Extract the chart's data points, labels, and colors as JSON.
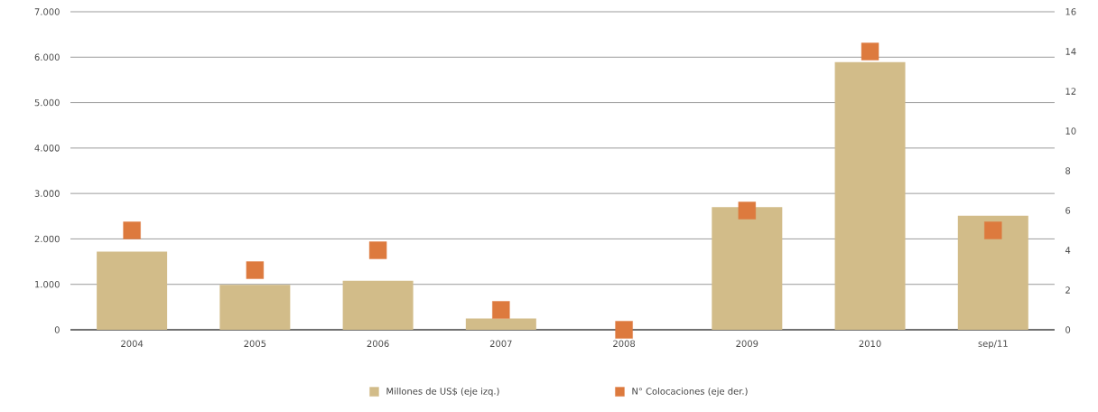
{
  "chart_data": {
    "type": "bar",
    "categories": [
      "2004",
      "2005",
      "2006",
      "2007",
      "2008",
      "2009",
      "2010",
      "sep/11"
    ],
    "series": [
      {
        "name": "Millones de US$ (eje izq.)",
        "color": "#d2bc89",
        "values": [
          1720,
          990,
          1080,
          250,
          0,
          2700,
          5890,
          2510
        ]
      },
      {
        "name": "N° Colocaciones (eje der.)",
        "type": "scatter",
        "axis": "y2",
        "marker": "square",
        "color": "#dd7a3e",
        "values": [
          5,
          3,
          4,
          1,
          0,
          6,
          14,
          5
        ]
      }
    ],
    "ylim": [
      0,
      7000
    ],
    "yticks": [
      0,
      {
        "value": 1000,
        "label": "1.000"
      },
      {
        "value": 2000,
        "label": "2.000"
      },
      {
        "value": 3000,
        "label": "3.000"
      },
      {
        "value": 4000,
        "label": "4.000"
      },
      {
        "value": 5000,
        "label": "5.000"
      },
      {
        "value": 6000,
        "label": "6.000"
      },
      {
        "value": 7000,
        "label": "7.000"
      }
    ],
    "y2lim": [
      0,
      16
    ],
    "y2ticks": [
      0,
      2,
      4,
      6,
      8,
      10,
      12,
      14,
      16
    ],
    "grid": "y",
    "legend": "bottom"
  }
}
